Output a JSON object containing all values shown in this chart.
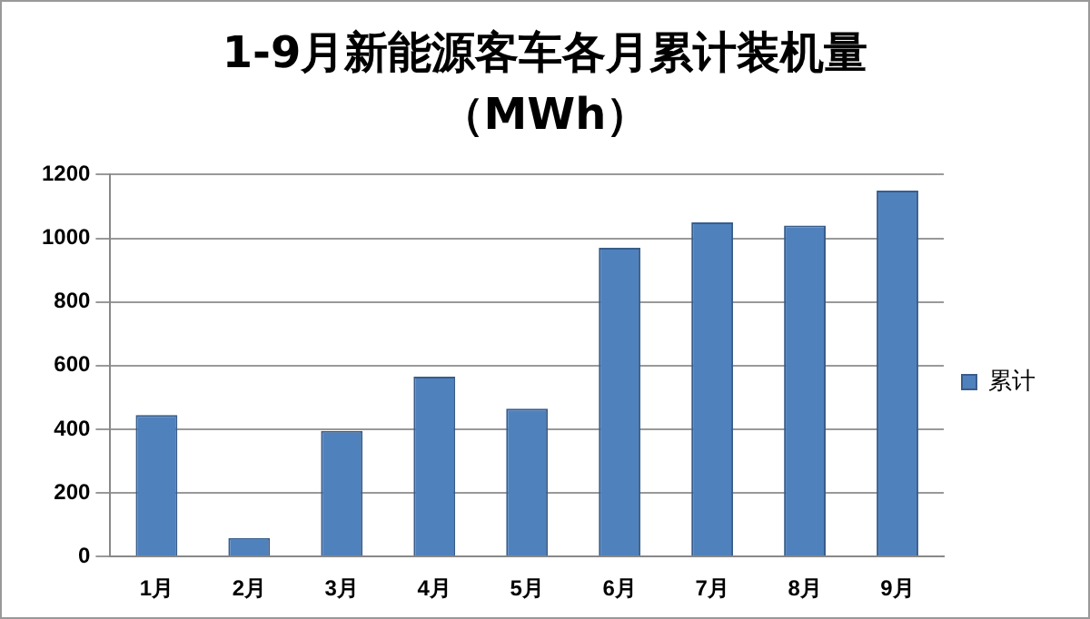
{
  "chart_data": {
    "type": "bar",
    "title": "1-9月新能源客车各月累计装机量",
    "subtitle": "（MWh）",
    "categories": [
      "1月",
      "2月",
      "3月",
      "4月",
      "5月",
      "6月",
      "7月",
      "8月",
      "9月"
    ],
    "series": [
      {
        "name": "累计",
        "color": "#4f81bd",
        "values": [
          445,
          58,
          395,
          565,
          465,
          970,
          1050,
          1040,
          1150
        ]
      }
    ],
    "ylim": [
      0,
      1200
    ],
    "yticks": [
      0,
      200,
      400,
      600,
      800,
      1000,
      1200
    ],
    "grid": "y",
    "legend": "right"
  }
}
